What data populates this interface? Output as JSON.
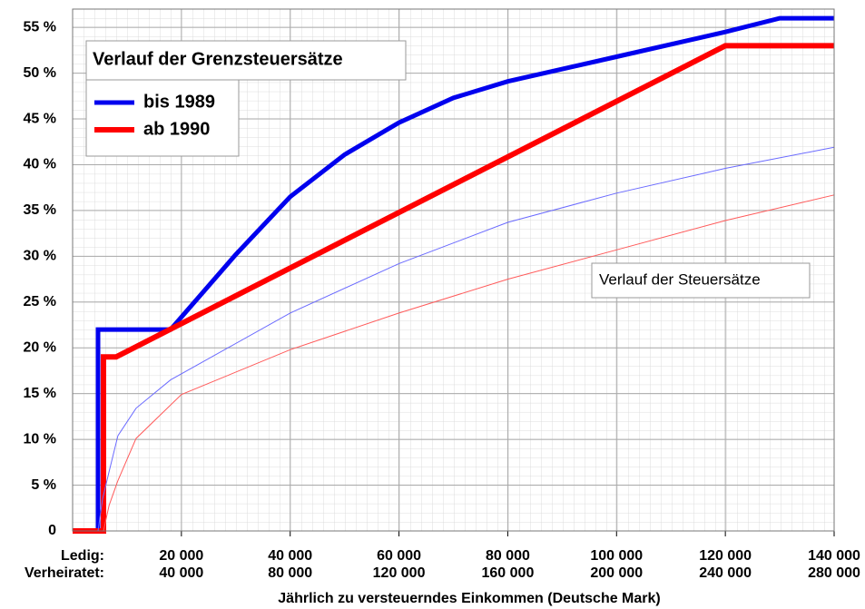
{
  "chart_data": {
    "type": "line",
    "xlabel": "Jährlich zu versteuerndes Einkommen (Deutsche Mark)",
    "xlim": [
      0,
      140000
    ],
    "x2lim": [
      0,
      280000
    ],
    "ylim": [
      0,
      57
    ],
    "xrow_label": "Ledig:",
    "x2row_label": "Verheiratet:",
    "xticks": [
      {
        "value": 20000,
        "label": "20 000"
      },
      {
        "value": 40000,
        "label": "40 000"
      },
      {
        "value": 60000,
        "label": "60 000"
      },
      {
        "value": 80000,
        "label": "80 000"
      },
      {
        "value": 100000,
        "label": "100 000"
      },
      {
        "value": 120000,
        "label": "120 000"
      },
      {
        "value": 140000,
        "label": "140 000"
      }
    ],
    "x2ticks": [
      {
        "value": 40000,
        "label": "40 000"
      },
      {
        "value": 80000,
        "label": "80 000"
      },
      {
        "value": 120000,
        "label": "120 000"
      },
      {
        "value": 160000,
        "label": "160 000"
      },
      {
        "value": 200000,
        "label": "200 000"
      },
      {
        "value": 240000,
        "label": "240 000"
      },
      {
        "value": 280000,
        "label": "280 000"
      }
    ],
    "yticks": [
      0,
      {
        "value": 5,
        "label": "5 %"
      },
      {
        "value": 10,
        "label": "10 %"
      },
      {
        "value": 15,
        "label": "15 %"
      },
      {
        "value": 20,
        "label": "20 %"
      },
      {
        "value": 25,
        "label": "25 %"
      },
      {
        "value": 30,
        "label": "30 %"
      },
      {
        "value": 35,
        "label": "35 %"
      },
      {
        "value": 40,
        "label": "40 %"
      },
      {
        "value": 45,
        "label": "45 %"
      },
      {
        "value": 50,
        "label": "50 %"
      },
      {
        "value": 55,
        "label": "55 %"
      }
    ],
    "grid": true,
    "legend_title": "Verlauf der Grenzsteuersätze",
    "legend_position": "upper left",
    "annotation": "Verlauf der Steuersätze",
    "series": [
      {
        "name": "bis 1989",
        "color": "#0000ee",
        "line_width": 5,
        "x": [
          0,
          4667,
          4667,
          18000,
          30000,
          40000,
          50000,
          60000,
          70000,
          80000,
          100000,
          120000,
          130000,
          140000
        ],
        "values": [
          0,
          0,
          22,
          22,
          30.2,
          36.5,
          41.1,
          44.6,
          47.3,
          49.1,
          51.8,
          54.5,
          56,
          56
        ]
      },
      {
        "name": "ab 1990",
        "color": "#ff0000",
        "line_width": 6,
        "x": [
          0,
          5667,
          5667,
          8000,
          120000,
          140000
        ],
        "values": [
          0,
          0,
          19,
          19,
          53,
          53
        ]
      },
      {
        "color": "#6a6aff",
        "line_width": 1,
        "x": [
          4667,
          5500,
          6667,
          8333,
          11667,
          18000,
          40000,
          60000,
          80000,
          100000,
          120000,
          140000
        ],
        "values": [
          0,
          3.5,
          6.4,
          10.4,
          13.4,
          16.5,
          23.8,
          29.2,
          33.7,
          36.9,
          39.6,
          41.9
        ]
      },
      {
        "color": "#ff5a5a",
        "line_width": 1,
        "x": [
          5667,
          6700,
          8333,
          11667,
          20000,
          40000,
          60000,
          80000,
          100000,
          120000,
          140000
        ],
        "values": [
          0,
          2.8,
          5.5,
          10.1,
          14.9,
          19.8,
          23.8,
          27.5,
          30.7,
          33.9,
          36.7
        ]
      }
    ]
  }
}
